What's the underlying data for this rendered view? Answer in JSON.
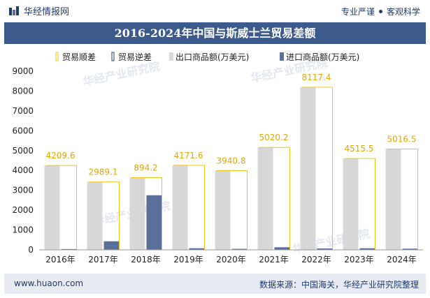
{
  "header": {
    "brand": "华经情报网",
    "tagline_left": "专业严谨",
    "tagline_right": "客观科学",
    "logo_icon": "bar-logo-icon"
  },
  "footer": {
    "website": "www.huaon.com",
    "source": "数据来源：中国海关，华经产业研究院整理"
  },
  "watermark": "华经产业研究院",
  "colors": {
    "title_bg": "#3d5a8c",
    "surplus": "#f0c419",
    "deficit": "#2a3f6b",
    "export": "#d8d8d8",
    "import": "#5a6f9a"
  },
  "chart_data": {
    "type": "bar",
    "title": "2016-2024年中国与斯威士兰贸易差额",
    "categories": [
      "2016年",
      "2017年",
      "2018年",
      "2019年",
      "2020年",
      "2021年",
      "2022年",
      "2023年",
      "2024年"
    ],
    "ylim": [
      0,
      9000
    ],
    "yticks": [
      0,
      1000,
      2000,
      3000,
      4000,
      5000,
      6000,
      7000,
      8000,
      9000
    ],
    "legend_position": "top",
    "grid": false,
    "series": [
      {
        "name": "贸易顺差",
        "key": "surplus",
        "style": "outline",
        "values": [
          4209.6,
          2989.1,
          894.2,
          4171.6,
          3940.8,
          5020.2,
          8117.4,
          4515.5,
          5016.5
        ]
      },
      {
        "name": "贸易逆差",
        "key": "deficit",
        "style": "outline",
        "values": [
          0,
          0,
          0,
          0,
          0,
          0,
          0,
          0,
          0
        ]
      },
      {
        "name": "出口商品额(万美元)",
        "key": "export",
        "style": "fill",
        "values": [
          4250,
          3420,
          3640,
          4260,
          3990,
          5160,
          8190,
          4600,
          5080
        ]
      },
      {
        "name": "进口商品额(万美元)",
        "key": "import",
        "style": "fill",
        "values": [
          40,
          430,
          2750,
          80,
          50,
          130,
          70,
          80,
          60
        ]
      }
    ],
    "data_labels": [
      "4209.6",
      "2989.1",
      "894.2",
      "4171.6",
      "3940.8",
      "5020.2",
      "8117.4",
      "4515.5",
      "5016.5"
    ]
  }
}
